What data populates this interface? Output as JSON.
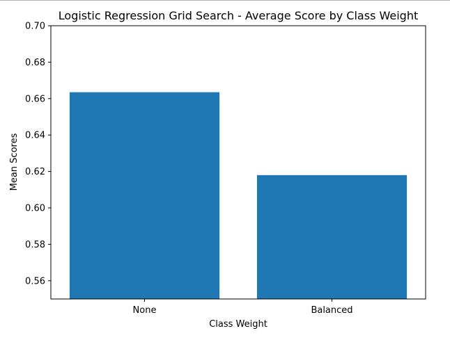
{
  "chart_data": {
    "type": "bar",
    "title": "Logistic Regression Grid Search - Average Score by Class Weight",
    "xlabel": "Class Weight",
    "ylabel": "Mean Scores",
    "categories": [
      "None",
      "Balanced"
    ],
    "values": [
      0.6635,
      0.618
    ],
    "ylim": [
      0.55,
      0.7
    ],
    "yticks": [
      "0.56",
      "0.58",
      "0.60",
      "0.62",
      "0.64",
      "0.66",
      "0.68",
      "0.70"
    ],
    "bar_color": "#1f77b4",
    "grid": false,
    "legend": "none"
  }
}
